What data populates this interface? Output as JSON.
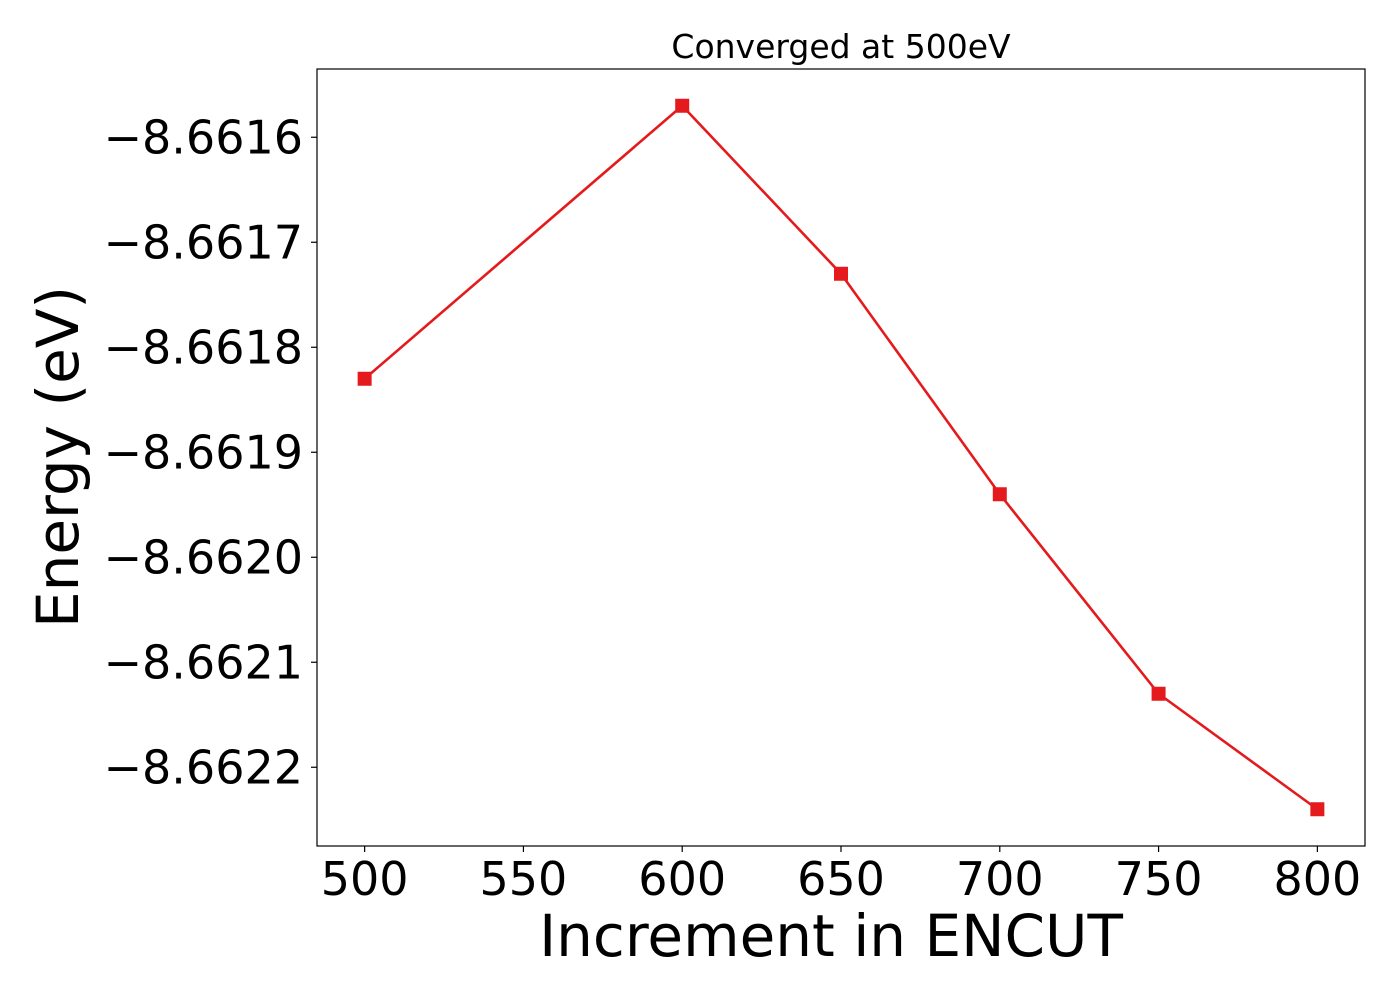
{
  "chart_data": {
    "type": "line",
    "title": "Converged at 500eV",
    "xlabel": "Increment in ENCUT",
    "ylabel": "Energy (eV)",
    "x": [
      500,
      600,
      650,
      700,
      750,
      800
    ],
    "series": [
      {
        "values": [
          -8.66183,
          -8.66157,
          -8.66173,
          -8.66194,
          -8.66213,
          -8.66224
        ],
        "color": "#e41a1c",
        "marker": "square"
      }
    ],
    "xticks": [
      500,
      550,
      600,
      650,
      700,
      750,
      800
    ],
    "xtick_labels": [
      "500",
      "550",
      "600",
      "650",
      "700",
      "750",
      "800"
    ],
    "yticks": [
      -8.6616,
      -8.6617,
      -8.6618,
      -8.6619,
      -8.662,
      -8.6621,
      -8.6622
    ],
    "ytick_labels": [
      "−8.6616",
      "−8.6617",
      "−8.6618",
      "−8.6619",
      "−8.6620",
      "−8.6621",
      "−8.6622"
    ],
    "xlim": [
      485,
      815
    ],
    "ylim": [
      -8.662275,
      -8.661535
    ],
    "grid": false,
    "legend": "none"
  }
}
